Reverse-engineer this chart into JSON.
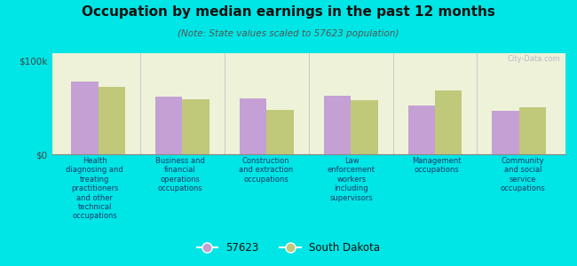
{
  "title": "Occupation by median earnings in the past 12 months",
  "subtitle": "(Note: State values scaled to 57623 population)",
  "background_color": "#00e5e5",
  "plot_bg_color": "#eef2d8",
  "categories": [
    "Health\ndiagnosing and\ntreating\npractitioners\nand other\ntechnical\noccupations",
    "Business and\nfinancial\noperations\noccupations",
    "Construction\nand extraction\noccupations",
    "Law\nenforcement\nworkers\nincluding\nsupervisors",
    "Management\noccupations",
    "Community\nand social\nservice\noccupations"
  ],
  "values_57623": [
    78000,
    62000,
    60000,
    63000,
    52000,
    46000
  ],
  "values_sd": [
    72000,
    59000,
    47000,
    58000,
    68000,
    50000
  ],
  "color_57623": "#c4a0d4",
  "color_sd": "#c0c87a",
  "ylabel_ticks": [
    "$0",
    "$100k"
  ],
  "yticks": [
    0,
    100000
  ],
  "ylim": [
    0,
    108000
  ],
  "legend_label_57623": "57623",
  "legend_label_sd": "South Dakota",
  "watermark": "City-Data.com"
}
